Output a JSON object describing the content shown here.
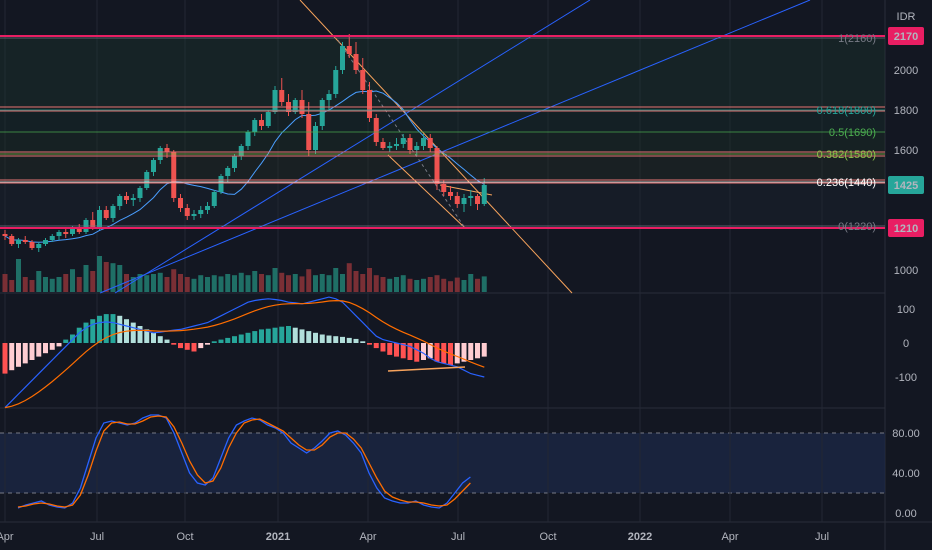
{
  "currency_label": "IDR",
  "colors": {
    "background": "#131722",
    "up": "#26a69a",
    "down": "#ef5350",
    "pink": "#e91e63",
    "orange": "#f7a35c",
    "blue": "#2962ff",
    "lightblue": "#4a9eff",
    "grid": "#232734",
    "text": "#b2b5be"
  },
  "chart_data": [
    {
      "type": "candlestick",
      "name": "price",
      "y_ticks": [
        "2000",
        "1800",
        "1600",
        "1000"
      ],
      "price_labels": [
        {
          "label": "2170",
          "value": 2170,
          "color": "#e91e63"
        },
        {
          "label": "1425",
          "value": 1425,
          "color": "#26a69a"
        },
        {
          "label": "1210",
          "value": 1210,
          "color": "#e91e63"
        }
      ],
      "fib_levels": [
        {
          "label": "1(2160)",
          "value": 2160,
          "color": "#787b86"
        },
        {
          "label": "0.618(1800)",
          "value": 1800,
          "color": "#26a69a"
        },
        {
          "label": "0.5(1690)",
          "value": 1690,
          "color": "#4caf50"
        },
        {
          "label": "0.382(1580)",
          "value": 1580,
          "color": "#8bc34a"
        },
        {
          "label": "0.236(1440)",
          "value": 1440,
          "color": "#ffffff"
        },
        {
          "label": "0(1220)",
          "value": 1220,
          "color": "#787b86"
        }
      ],
      "candles": [
        [
          1180,
          1200,
          1150,
          1170
        ],
        [
          1170,
          1180,
          1120,
          1130
        ],
        [
          1130,
          1160,
          1110,
          1150
        ],
        [
          1150,
          1170,
          1130,
          1140
        ],
        [
          1140,
          1150,
          1100,
          1110
        ],
        [
          1110,
          1140,
          1090,
          1130
        ],
        [
          1130,
          1160,
          1120,
          1150
        ],
        [
          1150,
          1180,
          1140,
          1170
        ],
        [
          1170,
          1200,
          1150,
          1190
        ],
        [
          1190,
          1210,
          1160,
          1180
        ],
        [
          1180,
          1220,
          1170,
          1210
        ],
        [
          1210,
          1230,
          1180,
          1190
        ],
        [
          1190,
          1260,
          1180,
          1250
        ],
        [
          1250,
          1290,
          1200,
          1210
        ],
        [
          1210,
          1320,
          1200,
          1300
        ],
        [
          1300,
          1320,
          1250,
          1260
        ],
        [
          1260,
          1330,
          1240,
          1320
        ],
        [
          1320,
          1380,
          1300,
          1370
        ],
        [
          1370,
          1390,
          1330,
          1350
        ],
        [
          1350,
          1380,
          1320,
          1360
        ],
        [
          1360,
          1420,
          1340,
          1410
        ],
        [
          1410,
          1500,
          1400,
          1490
        ],
        [
          1490,
          1560,
          1470,
          1550
        ],
        [
          1550,
          1620,
          1530,
          1610
        ],
        [
          1610,
          1630,
          1560,
          1590
        ],
        [
          1590,
          1600,
          1340,
          1360
        ],
        [
          1360,
          1380,
          1290,
          1310
        ],
        [
          1310,
          1330,
          1250,
          1270
        ],
        [
          1270,
          1300,
          1250,
          1280
        ],
        [
          1280,
          1320,
          1260,
          1300
        ],
        [
          1300,
          1340,
          1280,
          1320
        ],
        [
          1320,
          1400,
          1310,
          1390
        ],
        [
          1390,
          1480,
          1380,
          1470
        ],
        [
          1470,
          1520,
          1440,
          1510
        ],
        [
          1510,
          1580,
          1490,
          1570
        ],
        [
          1570,
          1630,
          1550,
          1620
        ],
        [
          1620,
          1700,
          1600,
          1690
        ],
        [
          1690,
          1760,
          1670,
          1750
        ],
        [
          1750,
          1780,
          1700,
          1720
        ],
        [
          1720,
          1800,
          1710,
          1790
        ],
        [
          1790,
          1920,
          1780,
          1900
        ],
        [
          1900,
          1960,
          1820,
          1840
        ],
        [
          1840,
          1880,
          1770,
          1790
        ],
        [
          1790,
          1860,
          1780,
          1850
        ],
        [
          1850,
          1900,
          1760,
          1780
        ],
        [
          1780,
          1840,
          1570,
          1600
        ],
        [
          1600,
          1740,
          1580,
          1720
        ],
        [
          1720,
          1860,
          1700,
          1850
        ],
        [
          1850,
          1900,
          1800,
          1880
        ],
        [
          1880,
          2020,
          1860,
          2000
        ],
        [
          2000,
          2140,
          1980,
          2120
        ],
        [
          2120,
          2180,
          2060,
          2080
        ],
        [
          2080,
          2140,
          1980,
          2000
        ],
        [
          2000,
          2060,
          1880,
          1900
        ],
        [
          1900,
          1940,
          1740,
          1760
        ],
        [
          1760,
          1780,
          1620,
          1640
        ],
        [
          1640,
          1660,
          1600,
          1610
        ],
        [
          1610,
          1640,
          1590,
          1620
        ],
        [
          1620,
          1660,
          1600,
          1630
        ],
        [
          1630,
          1680,
          1610,
          1660
        ],
        [
          1660,
          1680,
          1580,
          1600
        ],
        [
          1600,
          1640,
          1570,
          1620
        ],
        [
          1620,
          1680,
          1600,
          1660
        ],
        [
          1660,
          1680,
          1590,
          1610
        ],
        [
          1610,
          1620,
          1400,
          1430
        ],
        [
          1430,
          1450,
          1370,
          1390
        ],
        [
          1390,
          1420,
          1350,
          1370
        ],
        [
          1370,
          1390,
          1310,
          1330
        ],
        [
          1330,
          1380,
          1290,
          1360
        ],
        [
          1360,
          1400,
          1320,
          1370
        ],
        [
          1370,
          1380,
          1300,
          1330
        ],
        [
          1330,
          1460,
          1320,
          1425
        ]
      ],
      "volumes": [
        30,
        20,
        55,
        25,
        20,
        35,
        25,
        22,
        25,
        30,
        38,
        25,
        45,
        35,
        60,
        50,
        48,
        45,
        30,
        25,
        30,
        28,
        30,
        32,
        25,
        38,
        30,
        25,
        22,
        28,
        25,
        28,
        26,
        30,
        28,
        32,
        28,
        35,
        30,
        28,
        40,
        32,
        28,
        30,
        26,
        38,
        28,
        30,
        28,
        40,
        30,
        48,
        35,
        30,
        40,
        28,
        25,
        22,
        25,
        28,
        22,
        20,
        22,
        25,
        28,
        22,
        18,
        24,
        20,
        30,
        22,
        26
      ]
    },
    {
      "type": "line",
      "name": "macd",
      "y_ticks": [
        "100",
        "0",
        "-100"
      ],
      "histogram": [
        -90,
        -80,
        -70,
        -60,
        -50,
        -40,
        -30,
        -20,
        -10,
        10,
        25,
        45,
        60,
        70,
        80,
        85,
        85,
        80,
        70,
        60,
        50,
        40,
        30,
        20,
        10,
        -5,
        -15,
        -20,
        -25,
        -15,
        -5,
        5,
        10,
        15,
        20,
        25,
        30,
        35,
        40,
        42,
        45,
        48,
        50,
        45,
        40,
        35,
        30,
        25,
        22,
        20,
        18,
        15,
        12,
        5,
        -5,
        -15,
        -25,
        -35,
        -40,
        -45,
        -50,
        -55,
        -50,
        -45,
        -55,
        -60,
        -65,
        -60,
        -55,
        -50,
        -45,
        -40
      ],
      "macd_line": [
        -190,
        -170,
        -150,
        -130,
        -110,
        -90,
        -70,
        -50,
        -30,
        -10,
        10,
        30,
        45,
        55,
        60,
        62,
        60,
        55,
        50,
        45,
        40,
        35,
        30,
        32,
        35,
        38,
        40,
        45,
        50,
        55,
        60,
        70,
        80,
        90,
        100,
        110,
        120,
        125,
        128,
        130,
        128,
        125,
        120,
        118,
        115,
        120,
        125,
        130,
        135,
        130,
        120,
        100,
        80,
        60,
        40,
        20,
        10,
        5,
        0,
        -5,
        -10,
        -20,
        -30,
        -45,
        -55,
        -60,
        -65,
        -70,
        -80,
        -90,
        -95,
        -100
      ]
    },
    {
      "type": "line",
      "name": "stochastic",
      "y_ticks": [
        "80.00",
        "40.00",
        "0.00"
      ],
      "k_line": [
        5,
        8,
        10,
        12,
        8,
        6,
        5,
        10,
        25,
        50,
        75,
        90,
        92,
        90,
        88,
        90,
        95,
        98,
        98,
        95,
        80,
        60,
        40,
        30,
        28,
        35,
        55,
        75,
        88,
        92,
        95,
        93,
        88,
        85,
        80,
        70,
        65,
        60,
        65,
        72,
        80,
        82,
        78,
        70,
        60,
        40,
        25,
        15,
        12,
        10,
        10,
        12,
        8,
        6,
        5,
        10,
        20,
        30,
        36
      ],
      "d_line": [
        6,
        7,
        9,
        10,
        9,
        7,
        6,
        8,
        18,
        38,
        62,
        82,
        90,
        91,
        89,
        89,
        92,
        96,
        97,
        96,
        86,
        70,
        52,
        38,
        30,
        32,
        45,
        65,
        80,
        90,
        93,
        94,
        90,
        86,
        82,
        75,
        68,
        63,
        63,
        68,
        76,
        80,
        80,
        74,
        65,
        50,
        35,
        22,
        16,
        13,
        11,
        11,
        10,
        8,
        7,
        8,
        14,
        22,
        30
      ]
    }
  ],
  "x_labels": [
    "Apr",
    "Jul",
    "Oct",
    "2021",
    "Apr",
    "Jul",
    "Oct",
    "2022",
    "Apr",
    "Jul"
  ]
}
